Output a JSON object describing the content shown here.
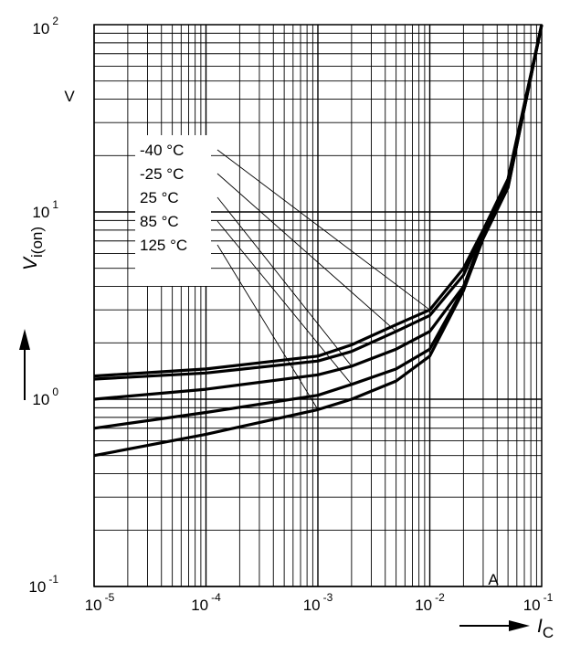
{
  "chart_data": {
    "type": "line",
    "x_scale": "log",
    "y_scale": "log",
    "xlim": [
      1e-05,
      0.1
    ],
    "ylim": [
      0.1,
      100
    ],
    "x_ticks": [
      {
        "base": "10",
        "exp": "-5"
      },
      {
        "base": "10",
        "exp": "-4"
      },
      {
        "base": "10",
        "exp": "-3"
      },
      {
        "base": "10",
        "exp": "-2"
      },
      {
        "base": "10",
        "exp": "-1"
      }
    ],
    "y_ticks": [
      {
        "base": "10",
        "exp": "-1"
      },
      {
        "base": "10",
        "exp": "0"
      },
      {
        "base": "10",
        "exp": "1"
      },
      {
        "base": "10",
        "exp": "2"
      }
    ],
    "xlabel": {
      "main": "I",
      "sub": "C"
    },
    "ylabel": {
      "main": "V",
      "sub": "i(on)"
    },
    "x_unit": "A",
    "y_unit": "V",
    "grid": true,
    "series": [
      {
        "name": "-40 °C",
        "x": [
          1e-05,
          0.0001,
          0.001,
          0.002,
          0.005,
          0.01,
          0.02,
          0.03,
          0.05,
          0.1
        ],
        "y": [
          1.33,
          1.45,
          1.7,
          1.95,
          2.5,
          3.0,
          5.0,
          8.0,
          15,
          100
        ]
      },
      {
        "name": "-25 °C",
        "x": [
          1e-05,
          0.0001,
          0.001,
          0.002,
          0.005,
          0.01,
          0.02,
          0.03,
          0.05,
          0.1
        ],
        "y": [
          1.28,
          1.38,
          1.6,
          1.8,
          2.3,
          2.8,
          4.6,
          7.8,
          14.5,
          100
        ]
      },
      {
        "name": "25 °C",
        "x": [
          1e-05,
          0.0001,
          0.001,
          0.002,
          0.005,
          0.01,
          0.02,
          0.03,
          0.05,
          0.1
        ],
        "y": [
          1.0,
          1.13,
          1.35,
          1.5,
          1.85,
          2.3,
          4.0,
          7.5,
          14,
          100
        ]
      },
      {
        "name": "85 °C",
        "x": [
          1e-05,
          0.0001,
          0.001,
          0.002,
          0.005,
          0.01,
          0.02,
          0.03,
          0.05,
          0.1
        ],
        "y": [
          0.7,
          0.85,
          1.05,
          1.2,
          1.45,
          1.85,
          3.9,
          7.3,
          13.5,
          100
        ]
      },
      {
        "name": "125 °C",
        "x": [
          1e-05,
          0.0001,
          0.001,
          0.002,
          0.005,
          0.01,
          0.02,
          0.03,
          0.05,
          0.1
        ],
        "y": [
          0.5,
          0.65,
          0.88,
          1.0,
          1.25,
          1.7,
          3.8,
          7.2,
          13.5,
          100
        ]
      }
    ],
    "legend_placement": "top-left inside plot, with leader lines to curves"
  }
}
